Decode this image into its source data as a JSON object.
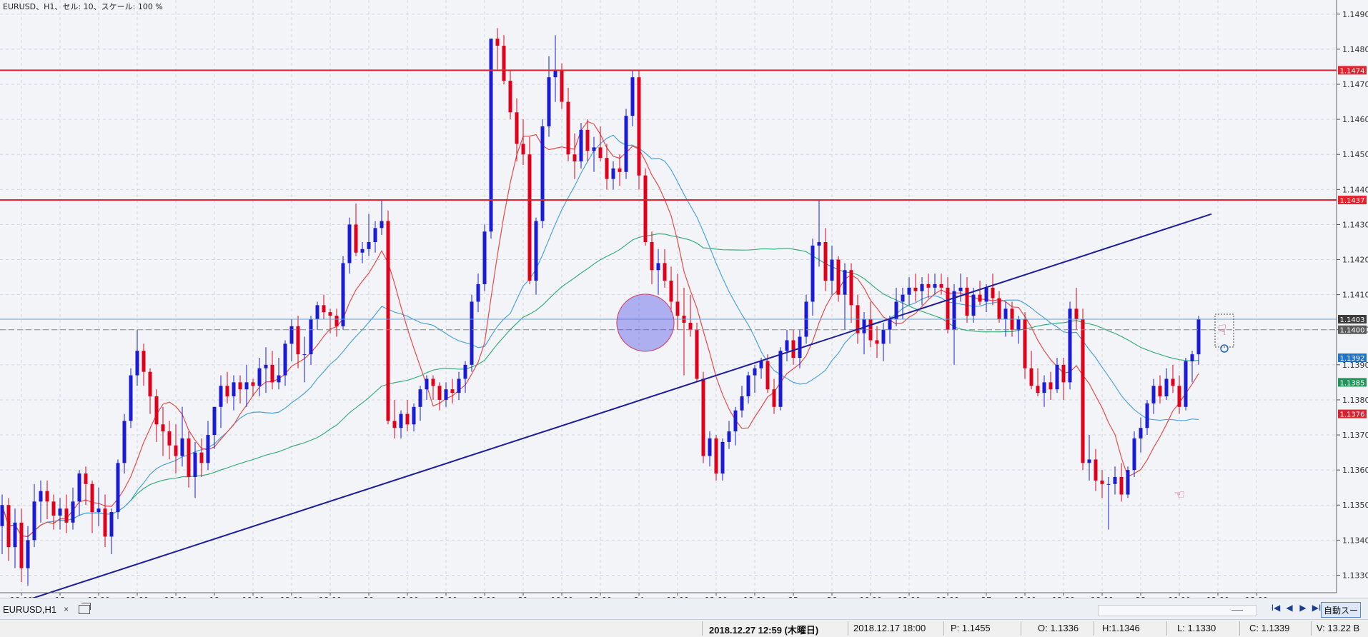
{
  "chart_header": "EURUSD、H1、セル: 10、スケール: 100 %",
  "colors": {
    "bg": "#f2f4f8",
    "bull": "#1b1bd6",
    "bear": "#e0001b",
    "grid": "#d3d7e0",
    "hline": "#e5232f",
    "ma_fast": "#e84a4a",
    "ma_mid": "#4ea3d8",
    "ma_slow": "#3aae7a",
    "trendline": "#1d1d9e"
  },
  "chart_data": {
    "type": "candlestick",
    "symbol": "EURUSD",
    "timeframe": "H1",
    "ylim": [
      1.1325,
      1.1492
    ],
    "y_ticks": [
      "1.1490",
      "1.1480",
      "1.1470",
      "1.1460",
      "1.1450",
      "1.1440",
      "1.1430",
      "1.1420",
      "1.1410",
      "1.1400",
      "1.1390",
      "1.1380",
      "1.1370",
      "1.1360",
      "1.1350",
      "1.1340",
      "1.1330"
    ],
    "x_ticks": [
      "18:00",
      "18",
      "06:00",
      "12:00",
      "18:00",
      "19",
      "06:00",
      "12:00",
      "18:00",
      "20",
      "06:00",
      "12:00",
      "18:00",
      "21",
      "06:00",
      "12:00",
      "24",
      "06:00",
      "12:00",
      "18:00",
      "25",
      "26",
      "06:00",
      "12:00",
      "18:00",
      "27",
      "06:00",
      "12:00",
      "18:00",
      "28",
      "06:00",
      "12:00",
      "18:00"
    ],
    "ohlc": [
      [
        1.1344,
        1.1353,
        1.1336,
        1.135
      ],
      [
        1.135,
        1.1352,
        1.1334,
        1.1338
      ],
      [
        1.1338,
        1.1349,
        1.1332,
        1.1345
      ],
      [
        1.1345,
        1.1349,
        1.1328,
        1.1332
      ],
      [
        1.1332,
        1.1344,
        1.1327,
        1.134
      ],
      [
        1.134,
        1.1356,
        1.1338,
        1.1351
      ],
      [
        1.1351,
        1.1357,
        1.1345,
        1.1354
      ],
      [
        1.1354,
        1.1357,
        1.1346,
        1.1351
      ],
      [
        1.1351,
        1.1353,
        1.1343,
        1.1347
      ],
      [
        1.1347,
        1.1352,
        1.1343,
        1.1349
      ],
      [
        1.1349,
        1.1353,
        1.1342,
        1.1345
      ],
      [
        1.1345,
        1.1355,
        1.1343,
        1.1351
      ],
      [
        1.1351,
        1.136,
        1.1347,
        1.1359
      ],
      [
        1.1359,
        1.1361,
        1.135,
        1.1356
      ],
      [
        1.1356,
        1.1357,
        1.1342,
        1.1348
      ],
      [
        1.1348,
        1.1355,
        1.1344,
        1.1349
      ],
      [
        1.1349,
        1.1353,
        1.1338,
        1.1341
      ],
      [
        1.1341,
        1.1349,
        1.1336,
        1.1348
      ],
      [
        1.1348,
        1.1363,
        1.1346,
        1.1362
      ],
      [
        1.1362,
        1.1376,
        1.1359,
        1.1374
      ],
      [
        1.1374,
        1.1389,
        1.1372,
        1.1387
      ],
      [
        1.1387,
        1.14,
        1.1384,
        1.1394
      ],
      [
        1.1394,
        1.1396,
        1.1384,
        1.1388
      ],
      [
        1.1388,
        1.1389,
        1.1376,
        1.1381
      ],
      [
        1.1381,
        1.1383,
        1.1368,
        1.1373
      ],
      [
        1.1373,
        1.1378,
        1.1364,
        1.1371
      ],
      [
        1.1371,
        1.1374,
        1.1363,
        1.1367
      ],
      [
        1.1367,
        1.1373,
        1.1359,
        1.1364
      ],
      [
        1.1364,
        1.1378,
        1.1361,
        1.1369
      ],
      [
        1.1369,
        1.1371,
        1.1355,
        1.1358
      ],
      [
        1.1358,
        1.1368,
        1.1352,
        1.1365
      ],
      [
        1.1365,
        1.1369,
        1.1358,
        1.1362
      ],
      [
        1.1362,
        1.1374,
        1.136,
        1.137
      ],
      [
        1.137,
        1.1377,
        1.1366,
        1.1378
      ],
      [
        1.1378,
        1.1387,
        1.1372,
        1.1384
      ],
      [
        1.1384,
        1.1388,
        1.1379,
        1.1381
      ],
      [
        1.1381,
        1.1387,
        1.1377,
        1.1385
      ],
      [
        1.1385,
        1.1387,
        1.1379,
        1.1383
      ],
      [
        1.1383,
        1.139,
        1.1378,
        1.1385
      ],
      [
        1.1385,
        1.1386,
        1.1381,
        1.1384
      ],
      [
        1.1384,
        1.1392,
        1.1381,
        1.1389
      ],
      [
        1.1389,
        1.1395,
        1.1382,
        1.139
      ],
      [
        1.139,
        1.1394,
        1.1383,
        1.1385
      ],
      [
        1.1385,
        1.1392,
        1.1383,
        1.1387
      ],
      [
        1.1387,
        1.1397,
        1.1384,
        1.1396
      ],
      [
        1.1396,
        1.1403,
        1.1391,
        1.1401
      ],
      [
        1.1401,
        1.1404,
        1.1389,
        1.1393
      ],
      [
        1.1393,
        1.1398,
        1.1385,
        1.1393
      ],
      [
        1.1393,
        1.1404,
        1.139,
        1.1403
      ],
      [
        1.1403,
        1.1408,
        1.14,
        1.1407
      ],
      [
        1.1407,
        1.141,
        1.1403,
        1.1405
      ],
      [
        1.1405,
        1.1406,
        1.1399,
        1.1404
      ],
      [
        1.1404,
        1.1406,
        1.1398,
        1.1401
      ],
      [
        1.1401,
        1.1421,
        1.14,
        1.1419
      ],
      [
        1.1419,
        1.1432,
        1.1416,
        1.143
      ],
      [
        1.143,
        1.1436,
        1.1421,
        1.1422
      ],
      [
        1.1422,
        1.1425,
        1.1419,
        1.1423
      ],
      [
        1.1423,
        1.1433,
        1.1421,
        1.1425
      ],
      [
        1.1425,
        1.1431,
        1.1422,
        1.1429
      ],
      [
        1.1429,
        1.1437,
        1.1427,
        1.1431
      ],
      [
        1.1431,
        1.1434,
        1.1373,
        1.1374
      ],
      [
        1.1374,
        1.138,
        1.1369,
        1.1372
      ],
      [
        1.1372,
        1.1377,
        1.1369,
        1.1376
      ],
      [
        1.1376,
        1.138,
        1.1371,
        1.1373
      ],
      [
        1.1373,
        1.1379,
        1.1371,
        1.1378
      ],
      [
        1.1378,
        1.1384,
        1.1374,
        1.1383
      ],
      [
        1.1383,
        1.1387,
        1.138,
        1.1386
      ],
      [
        1.1386,
        1.1387,
        1.138,
        1.1384
      ],
      [
        1.1384,
        1.1385,
        1.1377,
        1.138
      ],
      [
        1.138,
        1.1385,
        1.1378,
        1.1383
      ],
      [
        1.1383,
        1.1386,
        1.1379,
        1.1382
      ],
      [
        1.1382,
        1.1388,
        1.138,
        1.1386
      ],
      [
        1.1386,
        1.1391,
        1.1382,
        1.139
      ],
      [
        1.139,
        1.141,
        1.1388,
        1.1408
      ],
      [
        1.1408,
        1.1416,
        1.1405,
        1.1413
      ],
      [
        1.1413,
        1.143,
        1.1411,
        1.1428
      ],
      [
        1.1428,
        1.1483,
        1.1426,
        1.1483
      ],
      [
        1.1483,
        1.1486,
        1.1474,
        1.1481
      ],
      [
        1.1481,
        1.1484,
        1.147,
        1.1471
      ],
      [
        1.1471,
        1.1474,
        1.146,
        1.1462
      ],
      [
        1.1462,
        1.1466,
        1.1448,
        1.1453
      ],
      [
        1.1453,
        1.146,
        1.1447,
        1.145
      ],
      [
        1.145,
        1.1455,
        1.1413,
        1.1414
      ],
      [
        1.1414,
        1.1432,
        1.141,
        1.1431
      ],
      [
        1.1431,
        1.146,
        1.1429,
        1.1458
      ],
      [
        1.1458,
        1.1478,
        1.1455,
        1.1472
      ],
      [
        1.1472,
        1.1484,
        1.1465,
        1.1474
      ],
      [
        1.1474,
        1.1476,
        1.1463,
        1.1465
      ],
      [
        1.1465,
        1.1469,
        1.1448,
        1.145
      ],
      [
        1.145,
        1.1456,
        1.1443,
        1.1448
      ],
      [
        1.1448,
        1.1459,
        1.1446,
        1.1457
      ],
      [
        1.1457,
        1.146,
        1.1448,
        1.1451
      ],
      [
        1.1451,
        1.1455,
        1.1445,
        1.1452
      ],
      [
        1.1452,
        1.1458,
        1.1448,
        1.1449
      ],
      [
        1.1449,
        1.1453,
        1.144,
        1.1443
      ],
      [
        1.1443,
        1.1448,
        1.144,
        1.1446
      ],
      [
        1.1446,
        1.145,
        1.1441,
        1.1445
      ],
      [
        1.1445,
        1.1463,
        1.1443,
        1.1461
      ],
      [
        1.1461,
        1.1474,
        1.1458,
        1.1472
      ],
      [
        1.1472,
        1.1474,
        1.144,
        1.1444
      ],
      [
        1.1444,
        1.1446,
        1.1424,
        1.1425
      ],
      [
        1.1425,
        1.1428,
        1.1413,
        1.1417
      ],
      [
        1.1417,
        1.1423,
        1.141,
        1.1419
      ],
      [
        1.1419,
        1.1423,
        1.1412,
        1.1414
      ],
      [
        1.1414,
        1.1418,
        1.1405,
        1.1408
      ],
      [
        1.1408,
        1.1416,
        1.14,
        1.1404
      ],
      [
        1.1404,
        1.1412,
        1.1387,
        1.1402
      ],
      [
        1.1402,
        1.141,
        1.1398,
        1.14
      ],
      [
        1.14,
        1.1402,
        1.1385,
        1.1386
      ],
      [
        1.1386,
        1.1388,
        1.1362,
        1.1364
      ],
      [
        1.1364,
        1.1371,
        1.1361,
        1.1369
      ],
      [
        1.1369,
        1.137,
        1.1357,
        1.1359
      ],
      [
        1.1359,
        1.1369,
        1.1357,
        1.1368
      ],
      [
        1.1368,
        1.1374,
        1.1366,
        1.1371
      ],
      [
        1.1371,
        1.1378,
        1.1367,
        1.1377
      ],
      [
        1.1377,
        1.1384,
        1.1375,
        1.1381
      ],
      [
        1.1381,
        1.1388,
        1.1379,
        1.1387
      ],
      [
        1.1387,
        1.139,
        1.1382,
        1.1389
      ],
      [
        1.1389,
        1.1392,
        1.1386,
        1.1391
      ],
      [
        1.1391,
        1.1393,
        1.1382,
        1.1383
      ],
      [
        1.1383,
        1.1386,
        1.1376,
        1.1378
      ],
      [
        1.1378,
        1.1395,
        1.1377,
        1.1394
      ],
      [
        1.1394,
        1.14,
        1.1391,
        1.1397
      ],
      [
        1.1397,
        1.14,
        1.139,
        1.1392
      ],
      [
        1.1392,
        1.14,
        1.1389,
        1.1398
      ],
      [
        1.1398,
        1.141,
        1.1396,
        1.1408
      ],
      [
        1.1408,
        1.1426,
        1.1404,
        1.1424
      ],
      [
        1.1424,
        1.1437,
        1.1418,
        1.1425
      ],
      [
        1.1425,
        1.1429,
        1.1411,
        1.1414
      ],
      [
        1.1414,
        1.1424,
        1.141,
        1.142
      ],
      [
        1.142,
        1.1421,
        1.1408,
        1.141
      ],
      [
        1.141,
        1.1419,
        1.14,
        1.1417
      ],
      [
        1.1417,
        1.1419,
        1.1402,
        1.1407
      ],
      [
        1.1407,
        1.141,
        1.1396,
        1.1399
      ],
      [
        1.1399,
        1.1405,
        1.1393,
        1.1403
      ],
      [
        1.1403,
        1.1408,
        1.1395,
        1.1397
      ],
      [
        1.1397,
        1.1401,
        1.1392,
        1.1396
      ],
      [
        1.1396,
        1.1402,
        1.1391,
        1.14
      ],
      [
        1.14,
        1.1404,
        1.1396,
        1.1403
      ],
      [
        1.1403,
        1.1412,
        1.1401,
        1.1408
      ],
      [
        1.1408,
        1.1412,
        1.1403,
        1.141
      ],
      [
        1.141,
        1.1415,
        1.1407,
        1.1412
      ],
      [
        1.1412,
        1.1416,
        1.1408,
        1.1411
      ],
      [
        1.1411,
        1.1415,
        1.1407,
        1.1413
      ],
      [
        1.1413,
        1.1416,
        1.1409,
        1.1412
      ],
      [
        1.1412,
        1.1416,
        1.141,
        1.1413
      ],
      [
        1.1413,
        1.1416,
        1.141,
        1.1412
      ],
      [
        1.1412,
        1.1415,
        1.1399,
        1.14
      ],
      [
        1.14,
        1.1413,
        1.139,
        1.1411
      ],
      [
        1.1411,
        1.1416,
        1.1408,
        1.1412
      ],
      [
        1.1412,
        1.1415,
        1.1402,
        1.1404
      ],
      [
        1.1404,
        1.1412,
        1.1402,
        1.141
      ],
      [
        1.141,
        1.1414,
        1.1407,
        1.1408
      ],
      [
        1.1408,
        1.1413,
        1.1405,
        1.1412
      ],
      [
        1.1412,
        1.1416,
        1.1407,
        1.1409
      ],
      [
        1.1409,
        1.1411,
        1.1402,
        1.1403
      ],
      [
        1.1403,
        1.1408,
        1.1398,
        1.1406
      ],
      [
        1.1406,
        1.1408,
        1.1398,
        1.14
      ],
      [
        1.14,
        1.1404,
        1.1396,
        1.1403
      ],
      [
        1.1403,
        1.1405,
        1.1386,
        1.1389
      ],
      [
        1.1389,
        1.1394,
        1.1383,
        1.1384
      ],
      [
        1.1384,
        1.1389,
        1.1381,
        1.1382
      ],
      [
        1.1382,
        1.1387,
        1.1378,
        1.1385
      ],
      [
        1.1385,
        1.1388,
        1.138,
        1.1383
      ],
      [
        1.1383,
        1.1392,
        1.1382,
        1.139
      ],
      [
        1.139,
        1.1392,
        1.138,
        1.1385
      ],
      [
        1.1385,
        1.1408,
        1.1383,
        1.1406
      ],
      [
        1.1406,
        1.1412,
        1.14,
        1.1403
      ],
      [
        1.1403,
        1.1406,
        1.136,
        1.1362
      ],
      [
        1.1362,
        1.137,
        1.1357,
        1.1363
      ],
      [
        1.1363,
        1.1366,
        1.1354,
        1.1357
      ],
      [
        1.1357,
        1.136,
        1.1352,
        1.1356
      ],
      [
        1.1356,
        1.1358,
        1.1343,
        1.1356
      ],
      [
        1.1356,
        1.1361,
        1.1353,
        1.1358
      ],
      [
        1.1358,
        1.1362,
        1.1351,
        1.1353
      ],
      [
        1.1353,
        1.1361,
        1.1352,
        1.136
      ],
      [
        1.136,
        1.1371,
        1.1358,
        1.1369
      ],
      [
        1.1369,
        1.1375,
        1.1365,
        1.1372
      ],
      [
        1.1372,
        1.138,
        1.137,
        1.1379
      ],
      [
        1.1379,
        1.1386,
        1.1376,
        1.1384
      ],
      [
        1.1384,
        1.1387,
        1.1379,
        1.1381
      ],
      [
        1.1381,
        1.1389,
        1.138,
        1.1386
      ],
      [
        1.1386,
        1.139,
        1.1382,
        1.1384
      ],
      [
        1.1384,
        1.1387,
        1.1376,
        1.1378
      ],
      [
        1.1378,
        1.1392,
        1.1377,
        1.1391
      ],
      [
        1.1391,
        1.1394,
        1.1385,
        1.1393
      ],
      [
        1.1393,
        1.1404,
        1.139,
        1.1403
      ]
    ],
    "h_lines": [
      {
        "price": 1.1474,
        "label": "1.1474",
        "color": "#e5232f"
      },
      {
        "price": 1.1437,
        "label": "1.1437",
        "color": "#e5232f"
      }
    ],
    "price_tags": [
      {
        "price": 1.1403,
        "label": "1.1403",
        "bg": "#3b3b3b",
        "fg": "#ffffff"
      },
      {
        "price": 1.14,
        "label": "1.1400",
        "bg": "#5a5a5a",
        "fg": "#ffffff"
      },
      {
        "price": 1.1392,
        "label": "1.1392",
        "bg": "#1f75c9",
        "fg": "#ffffff"
      },
      {
        "price": 1.1385,
        "label": "1.1385",
        "bg": "#22935a",
        "fg": "#ffffff"
      },
      {
        "price": 1.1376,
        "label": "1.1376",
        "bg": "#d8232f",
        "fg": "#ffffff"
      }
    ],
    "trendline": {
      "from": [
        -1,
        1.132
      ],
      "to": [
        188,
        1.1433
      ]
    },
    "grid": true
  },
  "tab": {
    "label": "EURUSD,H1",
    "close": "×"
  },
  "nav": {
    "first": "I◀",
    "prev": "◀",
    "next": "▶",
    "last": "▶I",
    "autoscroll": "自動スー"
  },
  "status": {
    "time": "2018.12.27 12:59 (木曜日)",
    "cursor_time": "2018.12.17 18:00",
    "p": "P: 1.1455",
    "o": "O: 1.1336",
    "h": "H:1.1346",
    "l": "L: 1.1330",
    "c": "C: 1.1339",
    "v": "V: 13.22 B"
  }
}
